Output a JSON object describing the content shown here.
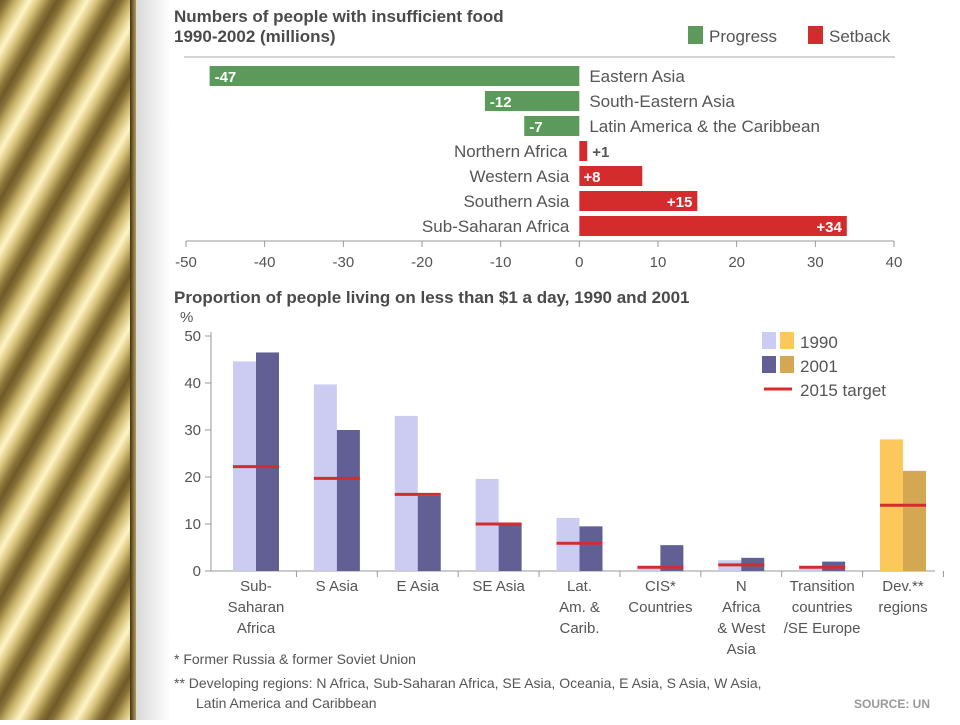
{
  "chart_data": [
    {
      "type": "bar",
      "orientation": "horizontal",
      "title": "Numbers of people with insufficient food",
      "subtitle": "1990-2002 (millions)",
      "categories": [
        "Eastern Asia",
        "South-Eastern Asia",
        "Latin America & the Caribbean",
        "Northern Africa",
        "Western Asia",
        "Southern Asia",
        "Sub-Saharan Africa"
      ],
      "values": [
        -47,
        -12,
        -7,
        1,
        8,
        15,
        34
      ],
      "value_labels": [
        "-47",
        "-12",
        "-7",
        "+1",
        "+8",
        "+15",
        "+34"
      ],
      "legend": [
        {
          "name": "Progress",
          "color": "#5b9a5b"
        },
        {
          "name": "Setback",
          "color": "#d42c2c"
        }
      ],
      "legend_position": "top-right",
      "xlim": [
        -50,
        40
      ],
      "xticks": [
        -50,
        -40,
        -30,
        -20,
        -10,
        0,
        10,
        20,
        30,
        40
      ]
    },
    {
      "type": "bar",
      "title": "Proportion of people living on less than $1 a day, 1990 and 2001",
      "ylabel": "%",
      "ylim": [
        0,
        50
      ],
      "yticks": [
        0,
        10,
        20,
        30,
        40,
        50
      ],
      "categories": [
        "Sub-Saharan Africa",
        "S Asia",
        "E Asia",
        "SE Asia",
        "Lat. Am. & Carib.",
        "CIS* Countries",
        "N Africa & West Asia",
        "Transition countries /SE Europe",
        "Dev.** regions"
      ],
      "category_label_lines": [
        [
          "Sub-",
          "Saharan",
          "Africa"
        ],
        [
          "S Asia"
        ],
        [
          "E Asia"
        ],
        [
          "SE Asia"
        ],
        [
          "Lat.",
          "Am. &",
          "Carib."
        ],
        [
          "CIS*",
          "Countries"
        ],
        [
          "N",
          "Africa",
          "& West",
          "Asia"
        ],
        [
          "Transition",
          "countries",
          "/SE Europe"
        ],
        [
          "Dev.**",
          "regions"
        ]
      ],
      "series": [
        {
          "name": "1990",
          "values": [
            44.6,
            39.7,
            33.0,
            19.6,
            11.3,
            0.5,
            2.3,
            0.5,
            28.0
          ]
        },
        {
          "name": "2001",
          "values": [
            46.5,
            30.0,
            16.0,
            10.0,
            9.5,
            5.5,
            2.8,
            2.0,
            21.3
          ]
        },
        {
          "name": "2015 target",
          "values": [
            22.2,
            19.7,
            16.3,
            10.0,
            5.9,
            0.8,
            1.3,
            0.8,
            14.0
          ]
        }
      ],
      "colors": {
        "light": "#ccccf2",
        "dark": "#615f94",
        "highlight_light": "#fcc85c",
        "highlight_dark": "#d4a853",
        "target": "#d42c2c"
      },
      "legend_position": "top-right",
      "footnotes": [
        "* Former Russia & former Soviet Union",
        "** Developing regions: N Africa, Sub-Saharan Africa, SE Asia, Oceania, E Asia, S Asia, W Asia,",
        "Latin America and Caribbean"
      ],
      "source": "SOURCE: UN"
    }
  ]
}
